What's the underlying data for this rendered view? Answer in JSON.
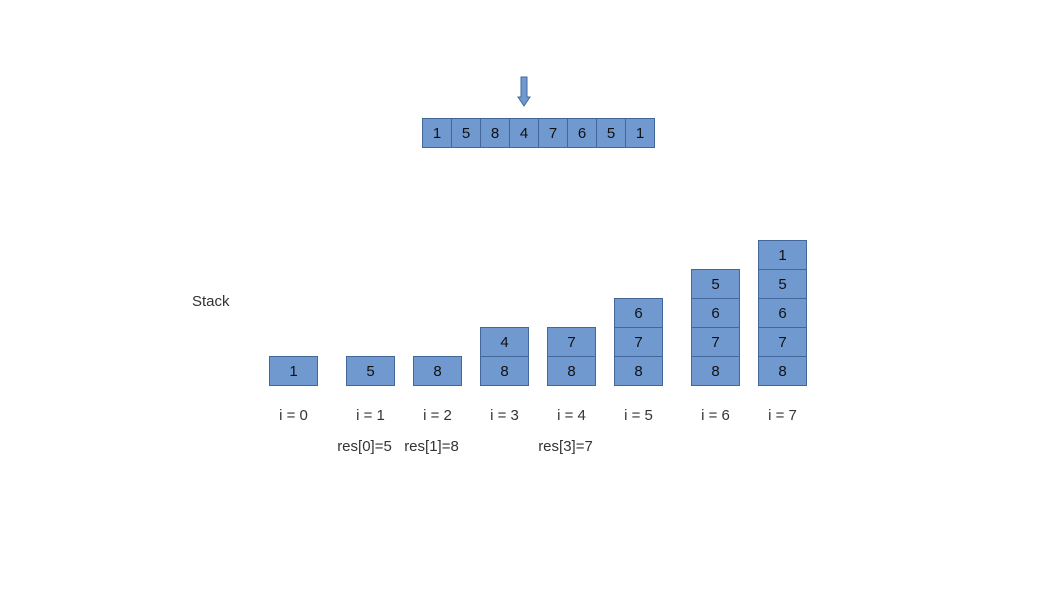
{
  "array": {
    "values": [
      "1",
      "5",
      "8",
      "4",
      "7",
      "6",
      "5",
      "1"
    ],
    "pointer_index": 3
  },
  "stack_label": "Stack",
  "steps": [
    {
      "label": "i = 0",
      "stack_top_to_bottom": [
        "1"
      ],
      "result": ""
    },
    {
      "label": "i = 1",
      "stack_top_to_bottom": [
        "5"
      ],
      "result": "res[0]=5"
    },
    {
      "label": "i = 2",
      "stack_top_to_bottom": [
        "8"
      ],
      "result": "res[1]=8"
    },
    {
      "label": "i = 3",
      "stack_top_to_bottom": [
        "4",
        "8"
      ],
      "result": ""
    },
    {
      "label": "i = 4",
      "stack_top_to_bottom": [
        "7",
        "8"
      ],
      "result": "res[3]=7"
    },
    {
      "label": "i = 5",
      "stack_top_to_bottom": [
        "6",
        "7",
        "8"
      ],
      "result": ""
    },
    {
      "label": "i = 6",
      "stack_top_to_bottom": [
        "5",
        "6",
        "7",
        "8"
      ],
      "result": ""
    },
    {
      "label": "i = 7",
      "stack_top_to_bottom": [
        "1",
        "5",
        "6",
        "7",
        "8"
      ],
      "result": ""
    }
  ],
  "colors": {
    "cell_fill": "#6f99cf",
    "cell_border": "#44679b"
  }
}
